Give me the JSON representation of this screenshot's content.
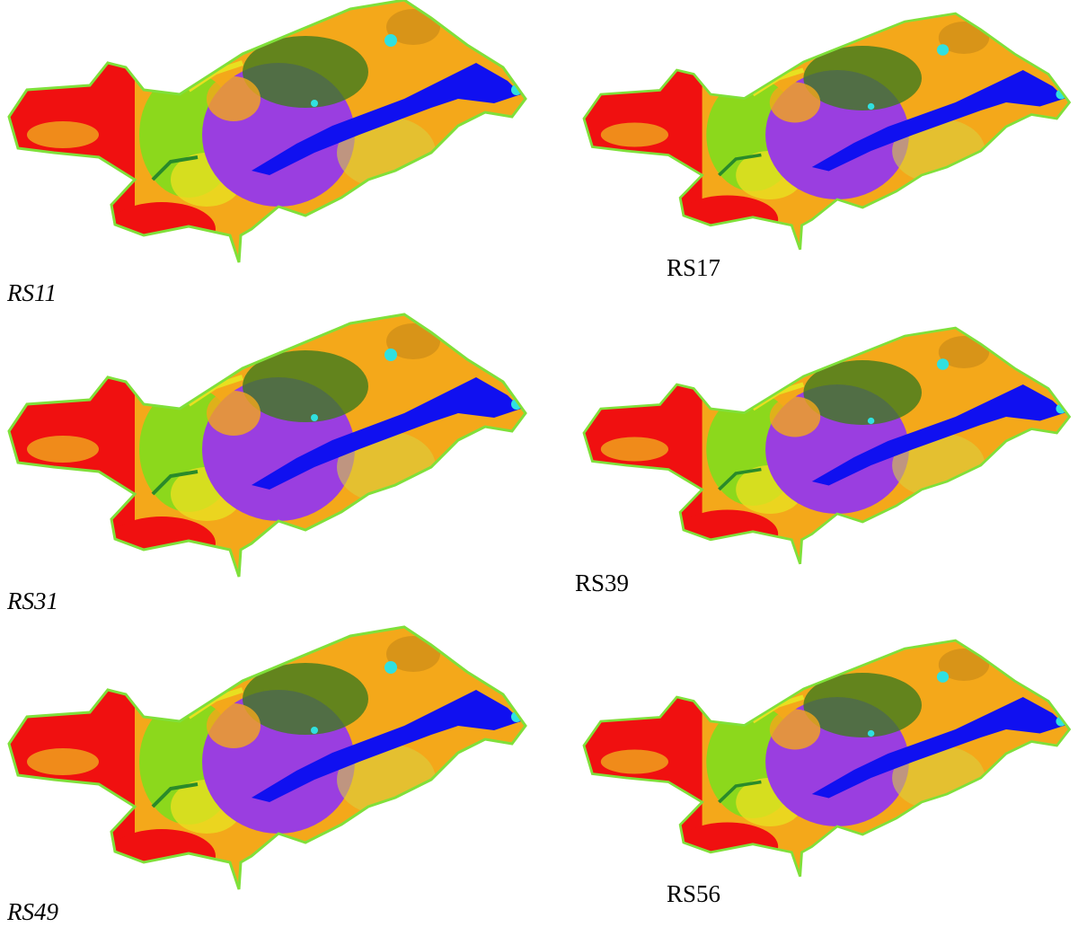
{
  "panels": [
    {
      "label": "RS11"
    },
    {
      "label": "RS17"
    },
    {
      "label": "RS31"
    },
    {
      "label": "RS39"
    },
    {
      "label": "RS49"
    },
    {
      "label": "RS56"
    }
  ]
}
